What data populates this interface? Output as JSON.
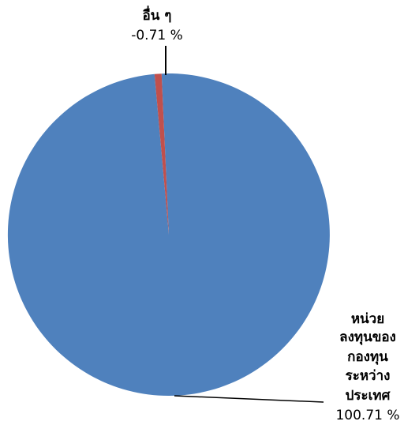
{
  "chart_data": {
    "type": "pie",
    "title": "",
    "start_angle_deg": -2.6,
    "direction": "clockwise",
    "slices": [
      {
        "name_lines": [
          "หน่วย",
          "ลงทุนของ",
          "กองทุน",
          "ระหว่าง",
          "ประเทศ"
        ],
        "value": 100.71,
        "value_label": "100.71 %",
        "color": "#4F81BD"
      },
      {
        "name_lines": [
          "อื่น ๆ"
        ],
        "value": -0.71,
        "value_label": "-0.71 %",
        "color": "#C0504D"
      }
    ],
    "legend": "none",
    "data_labels": "outside-with-leader-lines"
  }
}
